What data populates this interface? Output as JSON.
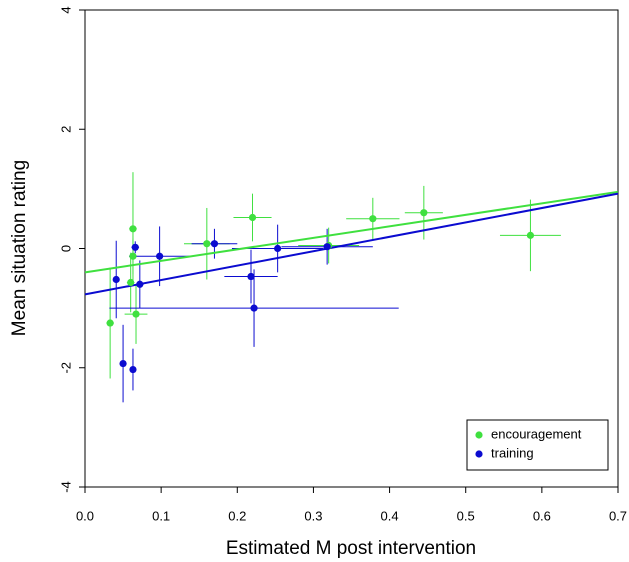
{
  "chart_data": {
    "type": "scatter",
    "x_label": "Estimated M post intervention",
    "y_label": "Mean situation rating",
    "xlim": [
      0,
      0.7
    ],
    "ylim": [
      -4,
      4
    ],
    "xticks": [
      {
        "value": 0,
        "label": "0.0"
      },
      0.1,
      0.2,
      0.3,
      0.4,
      0.5,
      0.6,
      0.7
    ],
    "yticks": [
      -4,
      -2,
      0,
      2,
      4
    ],
    "legend": "bottom-right",
    "series": [
      {
        "name": "encouragement",
        "color": "#3fe03f",
        "x": [
          0.033,
          0.06,
          0.063,
          0.063,
          0.067,
          0.16,
          0.22,
          0.32,
          0.378,
          0.445,
          0.585
        ],
        "y": [
          -1.25,
          -0.57,
          0.33,
          -0.13,
          -1.1,
          0.08,
          0.52,
          0.05,
          0.5,
          0.6,
          0.22
        ],
        "xerr": [
          0.005,
          0.005,
          0.005,
          0.005,
          0.015,
          0.03,
          0.025,
          0.04,
          0.035,
          0.025,
          0.04
        ],
        "yerr": [
          0.93,
          0.5,
          0.95,
          0.3,
          0.5,
          0.6,
          0.4,
          0.3,
          0.35,
          0.45,
          0.6
        ],
        "fit": {
          "x": [
            0,
            0.7
          ],
          "y": [
            -0.4,
            0.95
          ]
        }
      },
      {
        "name": "training",
        "color": "#0b0bd0",
        "x": [
          0.041,
          0.05,
          0.063,
          0.066,
          0.072,
          0.098,
          0.17,
          0.218,
          0.222,
          0.253,
          0.318
        ],
        "y": [
          -0.52,
          -1.93,
          -2.03,
          0.02,
          -0.6,
          -0.13,
          0.08,
          -0.47,
          -1.0,
          0.0,
          0.03
        ],
        "xerr": [
          0.003,
          0.003,
          0.003,
          0.005,
          0.005,
          0.04,
          0.03,
          0.035,
          0.19,
          0.06,
          0.06
        ],
        "yerr": [
          0.65,
          0.65,
          0.35,
          0.1,
          0.4,
          0.5,
          0.25,
          0.45,
          0.65,
          0.4,
          0.3
        ],
        "fit": {
          "x": [
            0,
            0.7
          ],
          "y": [
            -0.77,
            0.92
          ]
        }
      }
    ]
  }
}
